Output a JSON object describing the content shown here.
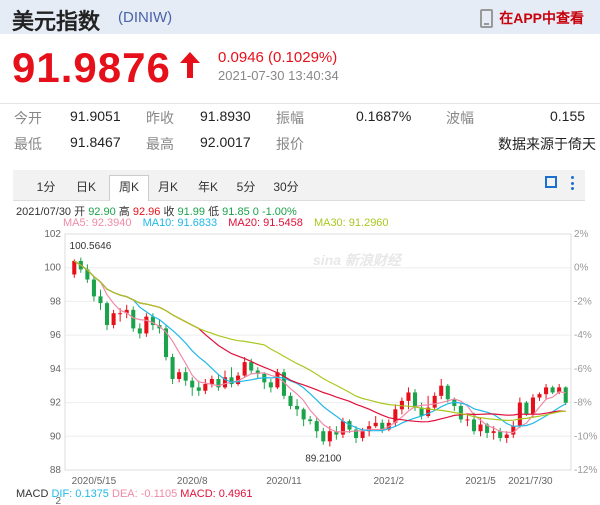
{
  "header": {
    "title": "美元指数",
    "code": "(DINIW)",
    "app_link": "在APP中查看"
  },
  "quote": {
    "price": "91.9876",
    "change": "0.0946 (0.1029%)",
    "timestamp": "2021-07-30 13:40:34"
  },
  "stats": {
    "row1": {
      "open_label": "今开",
      "open": "91.9051",
      "prev_label": "昨收",
      "prev": "91.8930",
      "amp_label": "振幅",
      "amp": "0.1687%",
      "wave_label": "波幅",
      "wave": "0.155"
    },
    "row2": {
      "low_label": "最低",
      "low": "91.8467",
      "high_label": "最高",
      "high": "92.0017",
      "report_label": "报价",
      "source": "数据来源于倚天"
    }
  },
  "tabs": [
    "1分",
    "日K",
    "周K",
    "月K",
    "年K",
    "5分",
    "30分"
  ],
  "active_tab": "周K",
  "ohlc": {
    "date": "2021/07/30",
    "open_label": "开",
    "open": "92.90",
    "high_label": "高",
    "high": "92.96",
    "close_label": "收",
    "close": "91.99",
    "low_label": "低",
    "low": "91.85",
    "chg": "0",
    "pct": "-1.00%"
  },
  "ma": {
    "ma5": "MA5: 92.3940",
    "ma10": "MA10: 91.6833",
    "ma20": "MA20: 91.5458",
    "ma30": "MA30: 91.2960"
  },
  "macd": {
    "label": "MACD",
    "dif": "DIF: 0.1375",
    "dea": "DEA: -0.1105",
    "macd": "MACD: 0.4961"
  },
  "colors": {
    "up": "#e6101a",
    "down": "#1aa34a",
    "ma5": "#f08aa8",
    "ma10": "#20b8e8",
    "ma20": "#e0103a",
    "ma30": "#a8c820"
  },
  "chart_data": {
    "type": "candlestick",
    "y_ticks": [
      "102",
      "100",
      "98",
      "96",
      "94",
      "92",
      "90",
      "88"
    ],
    "pct_ticks": [
      "2%",
      "0%",
      "-2%",
      "-4%",
      "-6%",
      "-8%",
      "-10%",
      "-12%"
    ],
    "x_labels": [
      "2020/5/15",
      "2020/8",
      "2020/11",
      "2021/2",
      "2021/5",
      "2021/7/30"
    ],
    "ylim": [
      88,
      102
    ],
    "max_label": "100.5646",
    "min_label": "89.2100",
    "candles": [
      [
        99.6,
        100.4,
        99.4,
        100.5
      ],
      [
        100.4,
        99.9,
        99.7,
        100.6
      ],
      [
        99.9,
        99.3,
        99.1,
        100.2
      ],
      [
        99.3,
        98.3,
        98.0,
        99.5
      ],
      [
        98.3,
        97.9,
        97.5,
        98.7
      ],
      [
        97.9,
        96.6,
        96.3,
        98.0
      ],
      [
        96.6,
        97.3,
        96.4,
        97.5
      ],
      [
        97.3,
        97.3,
        96.8,
        97.6
      ],
      [
        97.3,
        97.5,
        97.0,
        97.8
      ],
      [
        97.5,
        96.4,
        96.2,
        97.7
      ],
      [
        96.4,
        96.1,
        95.8,
        96.7
      ],
      [
        96.1,
        97.1,
        95.9,
        97.3
      ],
      [
        97.1,
        96.6,
        96.3,
        97.3
      ],
      [
        96.6,
        96.4,
        96.1,
        96.9
      ],
      [
        96.4,
        94.7,
        94.5,
        96.6
      ],
      [
        94.7,
        93.4,
        93.1,
        94.9
      ],
      [
        93.4,
        93.8,
        93.2,
        94.0
      ],
      [
        93.8,
        93.3,
        93.0,
        94.1
      ],
      [
        93.3,
        92.9,
        92.4,
        93.5
      ],
      [
        92.9,
        92.7,
        92.4,
        93.3
      ],
      [
        92.7,
        93.1,
        92.5,
        93.4
      ],
      [
        93.1,
        93.4,
        92.9,
        93.6
      ],
      [
        93.4,
        92.9,
        92.7,
        93.7
      ],
      [
        92.9,
        93.5,
        92.8,
        93.9
      ],
      [
        93.5,
        93.1,
        92.9,
        94.1
      ],
      [
        93.1,
        93.6,
        93.0,
        93.8
      ],
      [
        93.6,
        94.4,
        93.5,
        94.7
      ],
      [
        94.4,
        93.9,
        93.7,
        94.6
      ],
      [
        93.9,
        93.7,
        93.4,
        94.1
      ],
      [
        93.7,
        93.2,
        92.8,
        93.8
      ],
      [
        93.2,
        92.9,
        92.6,
        93.4
      ],
      [
        92.9,
        93.8,
        92.8,
        94.0
      ],
      [
        93.8,
        92.4,
        92.2,
        94.0
      ],
      [
        92.4,
        91.8,
        91.6,
        92.6
      ],
      [
        91.8,
        91.6,
        91.2,
        92.2
      ],
      [
        91.6,
        91.0,
        90.6,
        91.7
      ],
      [
        91.0,
        90.9,
        90.7,
        91.2
      ],
      [
        90.9,
        90.3,
        89.9,
        91.1
      ],
      [
        90.3,
        89.7,
        89.5,
        90.5
      ],
      [
        89.7,
        90.3,
        89.4,
        90.6
      ],
      [
        90.3,
        90.1,
        89.8,
        90.6
      ],
      [
        90.1,
        90.9,
        89.9,
        91.1
      ],
      [
        90.9,
        90.4,
        90.2,
        91.0
      ],
      [
        90.4,
        89.9,
        89.6,
        90.6
      ],
      [
        89.9,
        90.3,
        89.7,
        90.5
      ],
      [
        90.3,
        90.6,
        90.0,
        90.9
      ],
      [
        90.6,
        90.8,
        90.5,
        91.2
      ],
      [
        90.8,
        90.4,
        90.2,
        91.0
      ],
      [
        90.4,
        90.8,
        90.3,
        91.0
      ],
      [
        90.8,
        91.6,
        90.6,
        91.9
      ],
      [
        91.6,
        92.1,
        91.3,
        92.3
      ],
      [
        92.1,
        92.6,
        91.6,
        92.9
      ],
      [
        92.6,
        91.7,
        91.5,
        92.8
      ],
      [
        91.7,
        91.2,
        91.0,
        92.0
      ],
      [
        91.2,
        91.7,
        91.1,
        92.4
      ],
      [
        91.7,
        92.4,
        91.5,
        92.6
      ],
      [
        92.4,
        93.0,
        92.2,
        93.4
      ],
      [
        93.0,
        92.2,
        92.0,
        93.1
      ],
      [
        92.2,
        91.8,
        91.5,
        92.3
      ],
      [
        91.8,
        91.0,
        90.8,
        92.0
      ],
      [
        91.0,
        91.0,
        90.6,
        91.3
      ],
      [
        91.0,
        90.3,
        90.1,
        91.4
      ],
      [
        90.3,
        90.7,
        90.0,
        91.1
      ],
      [
        90.7,
        90.2,
        89.9,
        90.8
      ],
      [
        90.2,
        90.3,
        89.8,
        90.6
      ],
      [
        90.3,
        89.9,
        89.7,
        90.5
      ],
      [
        89.9,
        90.1,
        89.6,
        90.3
      ],
      [
        90.1,
        90.6,
        89.9,
        90.9
      ],
      [
        90.6,
        92.0,
        90.5,
        92.3
      ],
      [
        92.0,
        91.3,
        91.2,
        92.1
      ],
      [
        91.3,
        92.3,
        91.1,
        92.5
      ],
      [
        92.3,
        92.5,
        92.1,
        92.6
      ],
      [
        92.5,
        92.9,
        92.2,
        93.1
      ],
      [
        92.9,
        92.6,
        92.5,
        93.0
      ],
      [
        92.6,
        92.9,
        92.5,
        93.1
      ],
      [
        92.9,
        91.99,
        91.85,
        92.96
      ]
    ]
  }
}
